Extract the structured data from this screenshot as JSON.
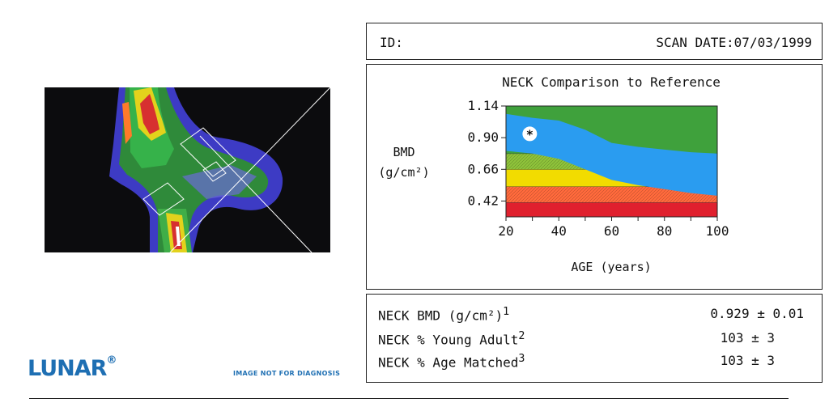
{
  "header": {
    "id_label": "ID:",
    "scan_date": "SCAN DATE:07/03/1999"
  },
  "brand": {
    "logo": "LUNAR",
    "logo_mark": "®",
    "disclaimer": "IMAGE NOT FOR DIAGNOSIS"
  },
  "chart_data": {
    "type": "area",
    "title": "NECK Comparison to Reference",
    "xlabel": "AGE (years)",
    "ylabel_line1": "BMD",
    "ylabel_line2": "(g/cm²)",
    "xlim": [
      20,
      100
    ],
    "ylim": [
      0.3,
      1.14
    ],
    "x_ticks": [
      "20",
      "40",
      "60",
      "80",
      "100"
    ],
    "y_ticks": [
      "1.14",
      "0.90",
      "0.66",
      "0.42"
    ],
    "bands": [
      {
        "y0": 0.3,
        "y1": 0.41,
        "color": "#e0202e"
      },
      {
        "y0": 0.41,
        "y1": 0.53,
        "color": "#ff6a3c",
        "hatched": true
      },
      {
        "y0": 0.53,
        "y1": 0.66,
        "color": "#f2dc00"
      },
      {
        "y0": 0.66,
        "y1": 0.78,
        "color": "#8ec23a",
        "hatched": true
      },
      {
        "y0": 0.78,
        "y1": 1.14,
        "color": "#3fa13c"
      }
    ],
    "reference_range": {
      "color": "#2a9cf0",
      "x": [
        20,
        30,
        40,
        50,
        60,
        70,
        80,
        90,
        100
      ],
      "upper": [
        1.08,
        1.05,
        1.03,
        0.96,
        0.86,
        0.83,
        0.81,
        0.79,
        0.78
      ],
      "lower": [
        0.8,
        0.78,
        0.74,
        0.66,
        0.58,
        0.54,
        0.51,
        0.48,
        0.46
      ]
    },
    "patient_point": {
      "x": 29,
      "y": 0.929,
      "marker": "*"
    }
  },
  "results": [
    {
      "label": "NECK BMD (g/cm²)",
      "ref": "1",
      "value": "0.929 ± 0.01"
    },
    {
      "label": "NECK % Young Adult",
      "ref": "2",
      "value": "103 ± 3"
    },
    {
      "label": "NECK % Age Matched",
      "ref": "3",
      "value": "103 ± 3"
    }
  ]
}
